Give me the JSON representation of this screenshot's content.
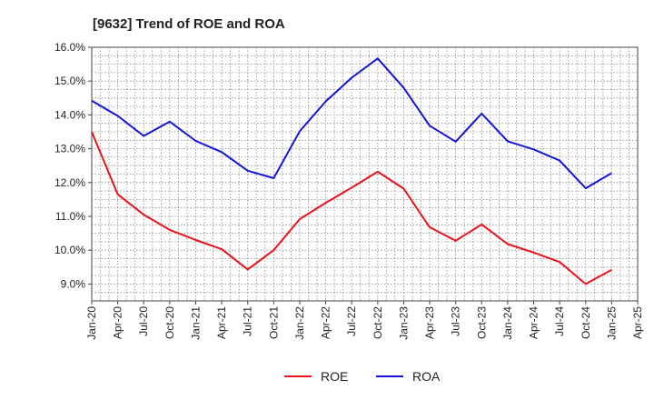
{
  "chart_data": {
    "type": "line",
    "title": "[9632]  Trend of ROE and ROA",
    "xlabel": "",
    "ylabel": "",
    "x": [
      "Jan-20",
      "Apr-20",
      "Jul-20",
      "Oct-20",
      "Jan-21",
      "Apr-21",
      "Jul-21",
      "Oct-21",
      "Jan-22",
      "Apr-22",
      "Jul-22",
      "Oct-22",
      "Jan-23",
      "Apr-23",
      "Jul-23",
      "Oct-23",
      "Jan-24",
      "Apr-24",
      "Jul-24",
      "Oct-24",
      "Jan-25",
      "Apr-25"
    ],
    "ylim": [
      8.5,
      16.0
    ],
    "yticks": [
      "9.0%",
      "10.0%",
      "11.0%",
      "12.0%",
      "13.0%",
      "14.0%",
      "15.0%",
      "16.0%"
    ],
    "ytick_values": [
      9.0,
      10.0,
      11.0,
      12.0,
      13.0,
      14.0,
      15.0,
      16.0
    ],
    "grid": true,
    "legend_position": "bottom-center",
    "series": [
      {
        "name": "ROE",
        "color": "#e8141b",
        "values": [
          13.5,
          11.65,
          11.05,
          10.6,
          10.3,
          10.03,
          9.43,
          10.0,
          10.92,
          11.4,
          11.85,
          12.32,
          11.82,
          10.68,
          10.28,
          10.76,
          10.18,
          9.93,
          9.65,
          9.0,
          9.42,
          null
        ]
      },
      {
        "name": "ROA",
        "color": "#1515d6",
        "values": [
          14.42,
          13.97,
          13.38,
          13.8,
          13.23,
          12.9,
          12.35,
          12.13,
          13.52,
          14.4,
          15.1,
          15.67,
          14.8,
          13.68,
          13.21,
          14.04,
          13.22,
          12.98,
          12.65,
          11.83,
          12.28,
          null
        ]
      }
    ]
  }
}
